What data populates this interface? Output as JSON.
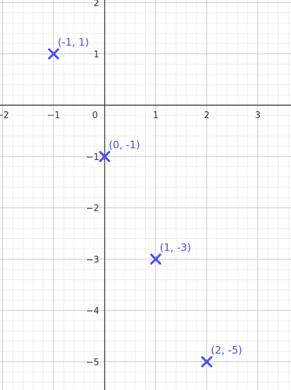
{
  "chart_data": {
    "type": "scatter",
    "title": "",
    "xlabel": "",
    "ylabel": "",
    "xlim": [
      -2.05,
      3.65
    ],
    "ylim": [
      -5.55,
      2.05
    ],
    "grid": true,
    "x_ticks": [
      {
        "value": -2,
        "label": "−2"
      },
      {
        "value": -1,
        "label": "−1"
      },
      {
        "value": 1,
        "label": "1"
      },
      {
        "value": 2,
        "label": "2"
      },
      {
        "value": 3,
        "label": "3"
      }
    ],
    "y_ticks": [
      {
        "value": 2,
        "label": "2"
      },
      {
        "value": 1,
        "label": "1"
      },
      {
        "value": -1,
        "label": "−1"
      },
      {
        "value": -2,
        "label": "−2"
      },
      {
        "value": -3,
        "label": "−3"
      },
      {
        "value": -4,
        "label": "−4"
      },
      {
        "value": -5,
        "label": "−5"
      }
    ],
    "origin_label": "0",
    "marker": "x",
    "color": "#4f4ff0",
    "points": [
      {
        "x": -1,
        "y": 1,
        "label": "(-1, 1)"
      },
      {
        "x": 0,
        "y": -1,
        "label": "(0, -1)"
      },
      {
        "x": 1,
        "y": -3,
        "label": "(1, -3)"
      },
      {
        "x": 2,
        "y": -5,
        "label": "(2, -5)"
      }
    ]
  }
}
